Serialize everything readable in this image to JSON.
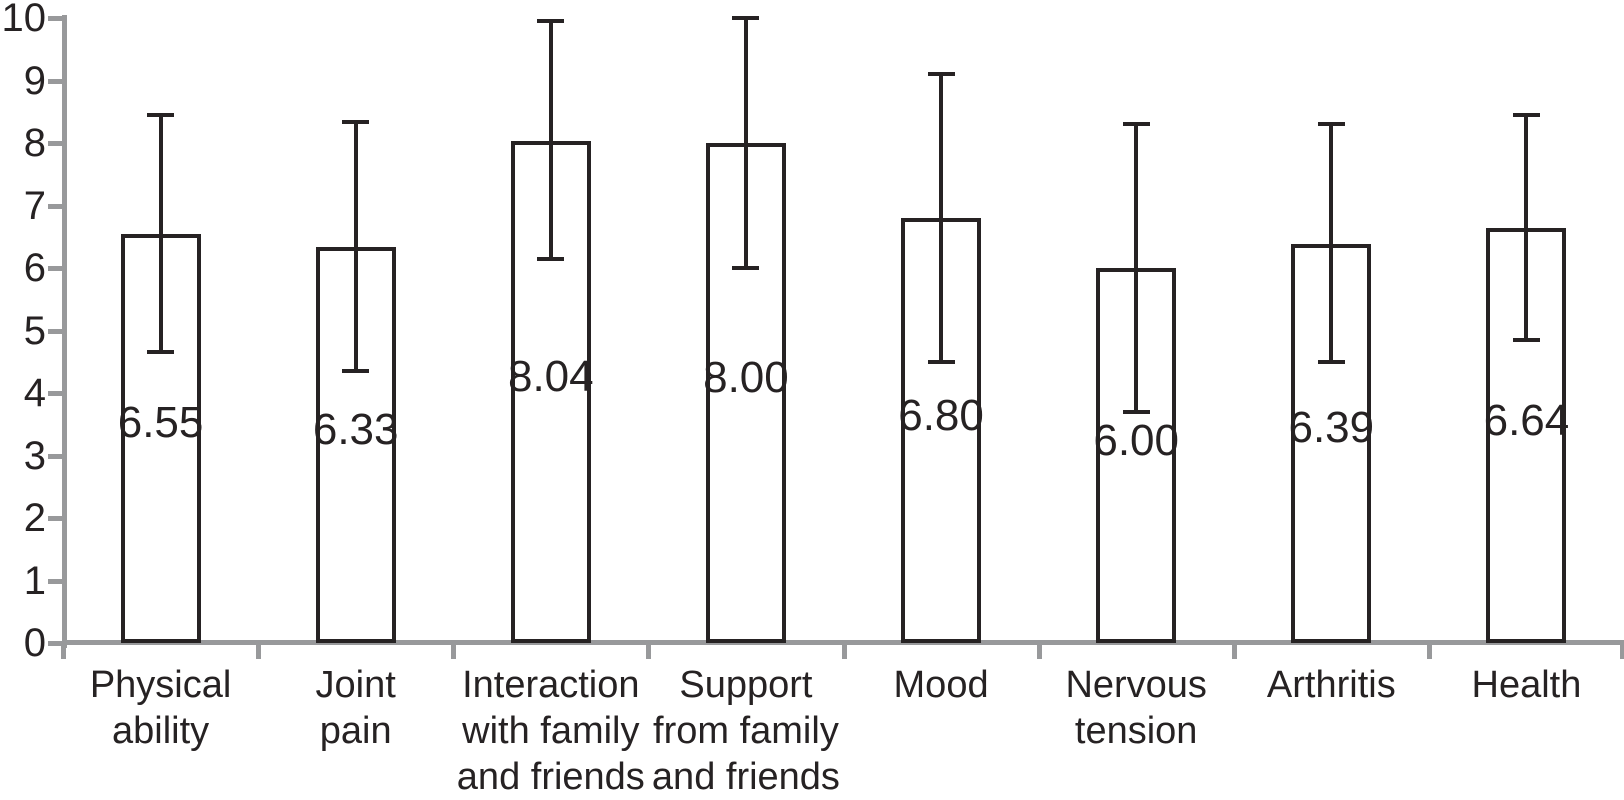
{
  "figure": {
    "background": "#ffffff"
  },
  "chart_data": {
    "type": "bar",
    "title": "",
    "xlabel": "",
    "ylabel": "",
    "categories": [
      "Physical ability",
      "Joint pain",
      "Interaction with family and friends",
      "Support from family and friends",
      "Mood",
      "Nervous tension",
      "Arthritis",
      "Health"
    ],
    "category_lines": [
      [
        "Physical",
        "ability"
      ],
      [
        "Joint",
        "pain"
      ],
      [
        "Interaction",
        "with family",
        "and friends"
      ],
      [
        "Support",
        "from family",
        "and friends"
      ],
      [
        "Mood"
      ],
      [
        "Nervous",
        "tension"
      ],
      [
        "Arthritis"
      ],
      [
        "Health"
      ]
    ],
    "values": [
      6.55,
      6.33,
      8.04,
      8.0,
      6.8,
      6.0,
      6.39,
      6.64
    ],
    "value_labels": [
      "6.55",
      "6.33",
      "8.04",
      "8.00",
      "6.80",
      "6.00",
      "6.39",
      "6.64"
    ],
    "error_whisker_top": [
      8.45,
      8.33,
      9.95,
      10.0,
      9.1,
      8.3,
      8.3,
      8.45
    ],
    "error_whisker_bottom": [
      4.65,
      4.35,
      6.15,
      6.0,
      4.5,
      3.7,
      4.5,
      4.85
    ],
    "ylim": [
      0,
      10
    ],
    "y_ticks": [
      0,
      1,
      2,
      3,
      4,
      5,
      6,
      7,
      8,
      9,
      10
    ],
    "y_tick_labels": [
      "0",
      "1",
      "2",
      "3",
      "4",
      "5",
      "6",
      "7",
      "8",
      "9",
      "10"
    ],
    "grid": false,
    "legend": false,
    "bar_fill": "#ffffff",
    "bar_stroke": "#262223",
    "error_color": "#262223",
    "axis_color": "#98999b",
    "text_color": "#262223"
  }
}
